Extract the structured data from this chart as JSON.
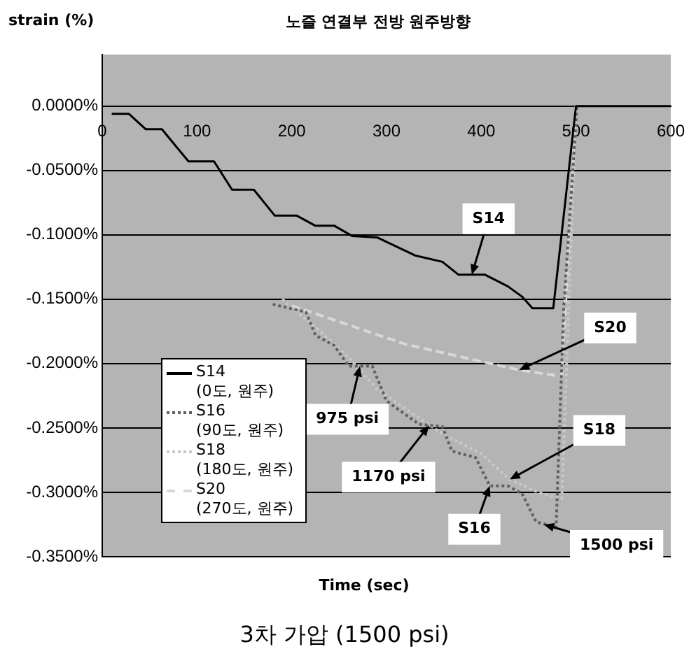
{
  "chart_data": {
    "type": "line",
    "title": "노즐 연결부 전방 원주방향",
    "subtitle": "3차 가압 (1500 psi)",
    "xlabel": "Time (sec)",
    "ylabel": "strain (%)",
    "xlim": [
      0,
      600
    ],
    "xticks": [
      0,
      100,
      200,
      300,
      400,
      500,
      600
    ],
    "ylim": [
      -0.35,
      0.04
    ],
    "yticks": [
      {
        "value": 0,
        "label": "0.0000%"
      },
      {
        "value": -0.05,
        "label": "-0.0500%"
      },
      {
        "value": -0.1,
        "label": "-0.1000%"
      },
      {
        "value": -0.15,
        "label": "-0.1500%"
      },
      {
        "value": -0.2,
        "label": "-0.2000%"
      },
      {
        "value": -0.25,
        "label": "-0.2500%"
      },
      {
        "value": -0.3,
        "label": "-0.3000%"
      },
      {
        "value": -0.35,
        "label": "-0.3500%"
      }
    ],
    "grid": "y",
    "legend": "bottom left",
    "marker": "none",
    "series": [
      {
        "name": "S14 (0도, 원주)",
        "color": "#000000",
        "line_style": "solid",
        "x": [
          10,
          28,
          46,
          63,
          91,
          118,
          137,
          160,
          182,
          205,
          225,
          245,
          264,
          290,
          330,
          359,
          376,
          404,
          428,
          443,
          454,
          476,
          500,
          600
        ],
        "values": [
          -0.006,
          -0.006,
          -0.018,
          -0.018,
          -0.043,
          -0.043,
          -0.065,
          -0.065,
          -0.085,
          -0.085,
          -0.093,
          -0.093,
          -0.101,
          -0.102,
          -0.116,
          -0.121,
          -0.131,
          -0.131,
          -0.14,
          -0.148,
          -0.157,
          -0.157,
          0,
          0
        ]
      },
      {
        "name": "S16 (90도, 원주)",
        "color": "#606060",
        "line_style": "dotted",
        "x": [
          180,
          215,
          225,
          245,
          260,
          285,
          300,
          334,
          359,
          369,
          394,
          409,
          428,
          443,
          458,
          479,
          487,
          501
        ],
        "values": [
          -0.154,
          -0.16,
          -0.178,
          -0.186,
          -0.202,
          -0.202,
          -0.229,
          -0.247,
          -0.249,
          -0.268,
          -0.273,
          -0.295,
          -0.295,
          -0.301,
          -0.323,
          -0.327,
          -0.157,
          -0.001
        ]
      },
      {
        "name": "S18 (180도, 원주)",
        "color": "#c8c8c8",
        "line_style": "dotted",
        "x": [
          190,
          230,
          260,
          290,
          330,
          360,
          400,
          430,
          460,
          485,
          500
        ],
        "values": [
          -0.15,
          -0.175,
          -0.195,
          -0.22,
          -0.24,
          -0.255,
          -0.27,
          -0.29,
          -0.3,
          -0.305,
          0
        ]
      },
      {
        "name": "S20 (270도, 원주)",
        "color": "#d8d8d8",
        "line_style": "dashed",
        "x": [
          200,
          260,
          320,
          380,
          440,
          485,
          500
        ],
        "values": [
          -0.155,
          -0.17,
          -0.185,
          -0.195,
          -0.205,
          -0.21,
          0
        ]
      }
    ],
    "annotations": [
      {
        "text": "S14",
        "x": 390,
        "y": -0.131
      },
      {
        "text": "S20",
        "x": 440,
        "y": -0.205
      },
      {
        "text": "975 psi",
        "x": 272,
        "y": -0.202
      },
      {
        "text": "1170 psi",
        "x": 345,
        "y": -0.248
      },
      {
        "text": "S18",
        "x": 430,
        "y": -0.29
      },
      {
        "text": "S16",
        "x": 409,
        "y": -0.295
      },
      {
        "text": "1500 psi",
        "x": 466,
        "y": -0.325
      }
    ]
  }
}
